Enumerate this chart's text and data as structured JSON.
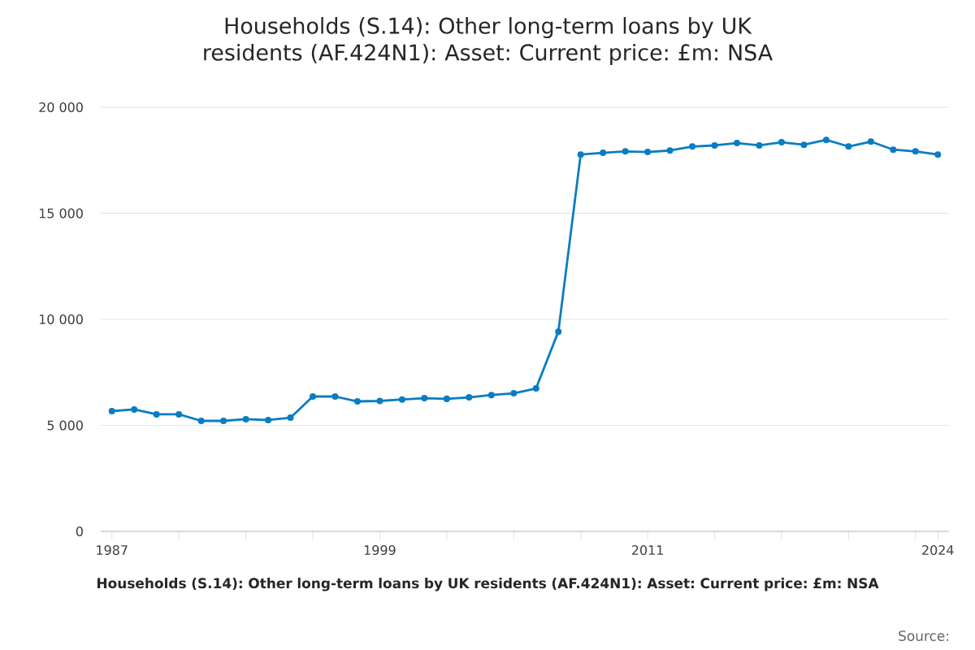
{
  "chart_data": {
    "type": "line",
    "title": "Households (S.14): Other long-term loans by UK residents (AF.424N1): Asset: Current price: £m: NSA",
    "xlabel": "Households (S.14): Other long-term loans by UK residents (AF.424N1): Asset: Current price: £m: NSA",
    "annotations": [
      "Source:"
    ],
    "x": [
      1987,
      1988,
      1989,
      1990,
      1991,
      1992,
      1993,
      1994,
      1995,
      1996,
      1997,
      1998,
      1999,
      2000,
      2001,
      2002,
      2003,
      2004,
      2005,
      2006,
      2007,
      2008,
      2009,
      2010,
      2011,
      2012,
      2013,
      2014,
      2015,
      2016,
      2017,
      2018,
      2019,
      2020,
      2021,
      2022,
      2023,
      2024
    ],
    "series": [
      {
        "color": "#0a7dc2",
        "values": [
          5670,
          5750,
          5520,
          5520,
          5210,
          5210,
          5290,
          5250,
          5360,
          6360,
          6360,
          6130,
          6150,
          6220,
          6280,
          6250,
          6320,
          6430,
          6510,
          6740,
          9420,
          17770,
          17850,
          17920,
          17890,
          17960,
          18150,
          18200,
          18310,
          18200,
          18350,
          18230,
          18460,
          18150,
          18380,
          18000,
          17920,
          17770
        ]
      }
    ],
    "xlim": [
      1986.5,
      2024.5
    ],
    "xticks": [
      1987,
      {
        "value": 1990,
        "label": null
      },
      {
        "value": 1993,
        "label": null
      },
      {
        "value": 1996,
        "label": null
      },
      1999,
      {
        "value": 2002,
        "label": null
      },
      {
        "value": 2005,
        "label": null
      },
      {
        "value": 2008,
        "label": null
      },
      2011,
      {
        "value": 2014,
        "label": null
      },
      {
        "value": 2017,
        "label": null
      },
      {
        "value": 2020,
        "label": null
      },
      {
        "value": 2023,
        "label": null
      },
      2024
    ],
    "ylim": [
      0,
      20000
    ],
    "yticks": [
      0,
      {
        "value": 5000,
        "label": "5 000"
      },
      {
        "value": 10000,
        "label": "10 000"
      },
      {
        "value": 15000,
        "label": "15 000"
      },
      {
        "value": 20000,
        "label": "20 000"
      }
    ],
    "grid": "y",
    "marker": "circle",
    "line_style": "solid"
  }
}
